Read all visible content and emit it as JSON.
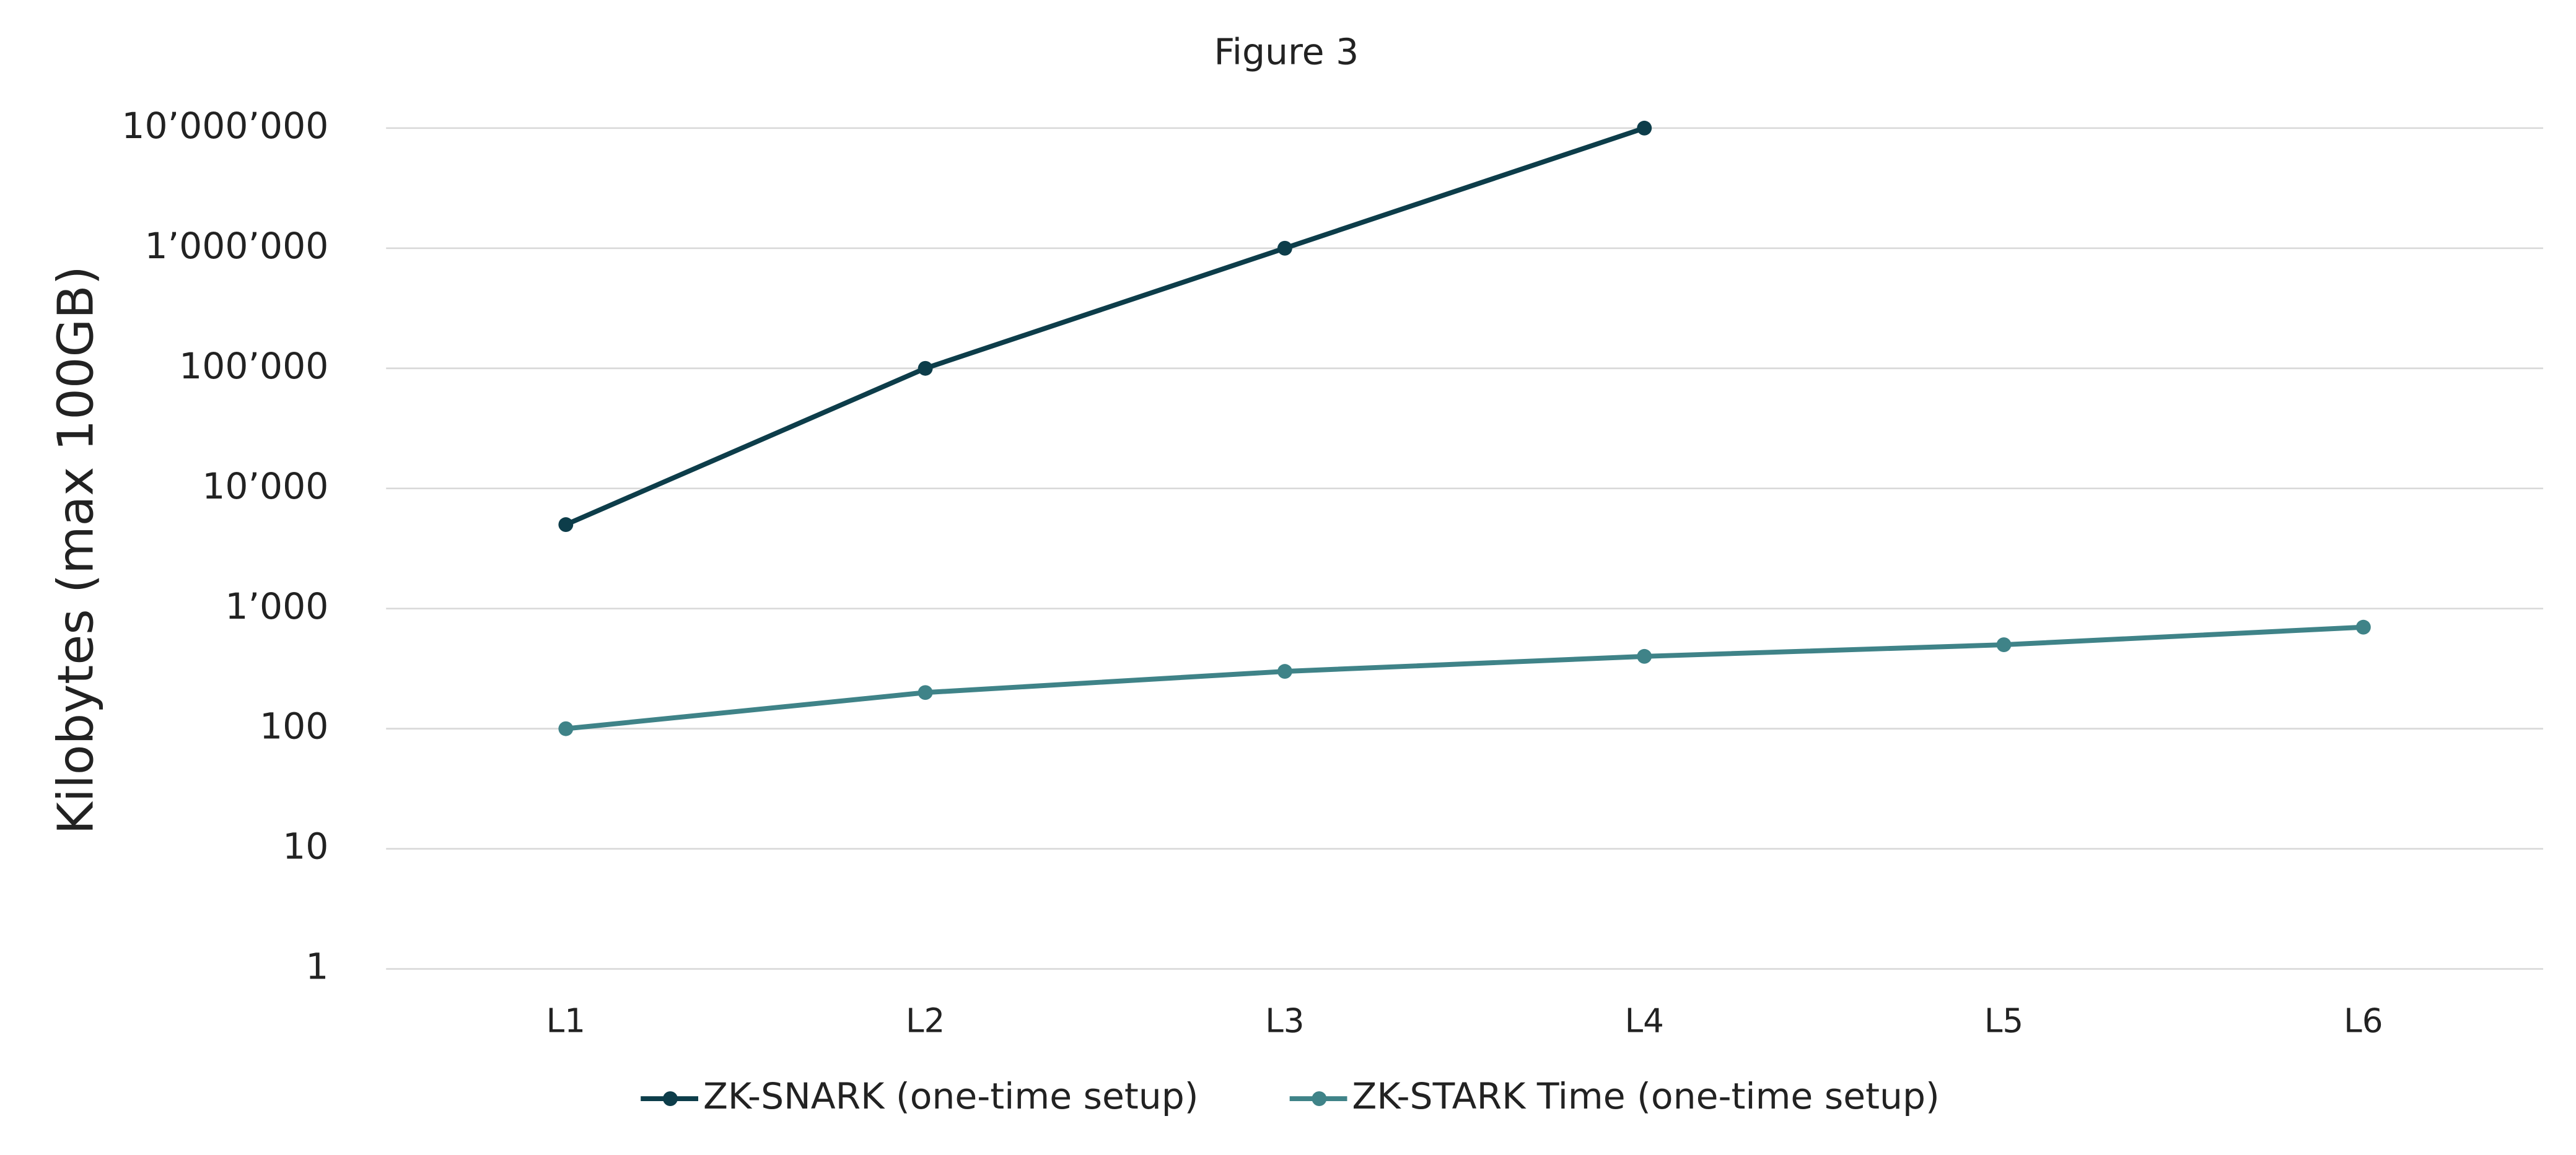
{
  "chart_data": {
    "type": "line",
    "title": "Figure 3",
    "y_label": "Kilobytes (max 100GB)",
    "categories": [
      "L1",
      "L2",
      "L3",
      "L4",
      "L5",
      "L6"
    ],
    "series": [
      {
        "name": "ZK-SNARK (one-time setup)",
        "color": "#0d3d4a",
        "values": [
          5000,
          100000,
          1000000,
          10000000,
          null,
          null
        ]
      },
      {
        "name": "ZK-STARK Time (one-time setup)",
        "color": "#3f8388",
        "values": [
          100,
          200,
          300,
          400,
          500,
          700
        ]
      }
    ],
    "log_scale": true,
    "ylim": [
      1,
      10000000
    ],
    "yticks": [
      1,
      10,
      100,
      {
        "value": 1000,
        "label": "1’000"
      },
      {
        "value": 10000,
        "label": "10’000"
      },
      {
        "value": 100000,
        "label": "100’000"
      },
      {
        "value": 1000000,
        "label": "1’000’000"
      },
      {
        "value": 10000000,
        "label": "10’000’000"
      }
    ],
    "grid": true,
    "legend": "bottom"
  }
}
